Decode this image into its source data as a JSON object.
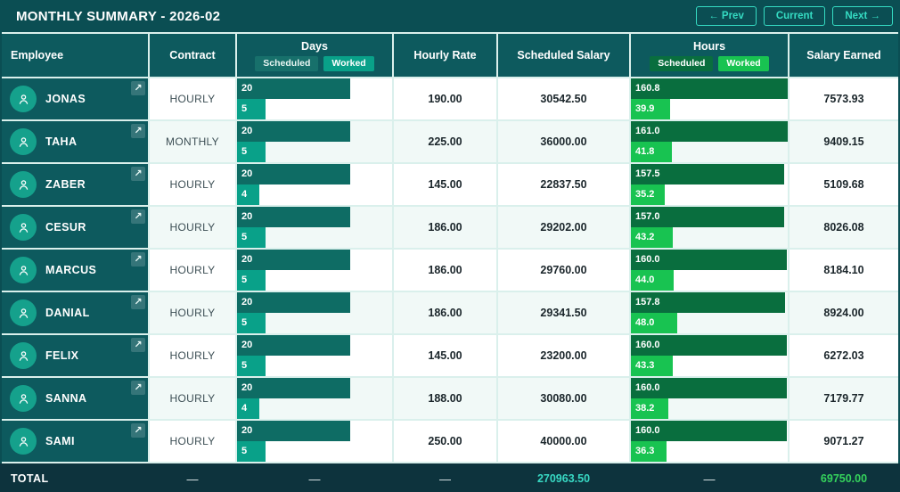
{
  "title": "MONTHLY SUMMARY - 2026-02",
  "nav": {
    "prev": "← Prev",
    "current": "Current",
    "next": "Next →"
  },
  "columns": {
    "employee": "Employee",
    "contract": "Contract",
    "days": "Days",
    "hourly_rate": "Hourly Rate",
    "scheduled_salary": "Scheduled Salary",
    "hours": "Hours",
    "salary_earned": "Salary Earned",
    "scheduled_badge": "Scheduled",
    "worked_badge": "Worked"
  },
  "bar_scales": {
    "days": 27.5,
    "hours": 161
  },
  "colors": {
    "page_bg": "#0b4e53",
    "header_cell_bg": "#0d5a5e",
    "accent": "#35dcc3",
    "grid_line": "#daf0ec",
    "row_alt_bg": "#f1f9f7",
    "badge_days_scheduled": "#17706b",
    "days_scheduled_bar": "#0e6c64",
    "days_worked_bar": "#09a189",
    "hours_scheduled_bar": "#096e3e",
    "hours_worked_bar": "#18c351",
    "avatar_bg": "#15a18c",
    "total_bg": "#0d333d",
    "total_scheduled_color": "#38d9c4",
    "total_earned_color": "#35d35c"
  },
  "open_icon": "↗",
  "employees": [
    {
      "name": "JONAS",
      "contract": "HOURLY",
      "days_scheduled": "20",
      "days_worked": "5",
      "hourly_rate": "190.00",
      "scheduled_salary": "30542.50",
      "hours_scheduled": "160.8",
      "hours_worked": "39.9",
      "salary_earned": "7573.93"
    },
    {
      "name": "TAHA",
      "contract": "MONTHLY",
      "days_scheduled": "20",
      "days_worked": "5",
      "hourly_rate": "225.00",
      "scheduled_salary": "36000.00",
      "hours_scheduled": "161.0",
      "hours_worked": "41.8",
      "salary_earned": "9409.15"
    },
    {
      "name": "ZABER",
      "contract": "HOURLY",
      "days_scheduled": "20",
      "days_worked": "4",
      "hourly_rate": "145.00",
      "scheduled_salary": "22837.50",
      "hours_scheduled": "157.5",
      "hours_worked": "35.2",
      "salary_earned": "5109.68"
    },
    {
      "name": "CESUR",
      "contract": "HOURLY",
      "days_scheduled": "20",
      "days_worked": "5",
      "hourly_rate": "186.00",
      "scheduled_salary": "29202.00",
      "hours_scheduled": "157.0",
      "hours_worked": "43.2",
      "salary_earned": "8026.08"
    },
    {
      "name": "MARCUS",
      "contract": "HOURLY",
      "days_scheduled": "20",
      "days_worked": "5",
      "hourly_rate": "186.00",
      "scheduled_salary": "29760.00",
      "hours_scheduled": "160.0",
      "hours_worked": "44.0",
      "salary_earned": "8184.10"
    },
    {
      "name": "DANIAL",
      "contract": "HOURLY",
      "days_scheduled": "20",
      "days_worked": "5",
      "hourly_rate": "186.00",
      "scheduled_salary": "29341.50",
      "hours_scheduled": "157.8",
      "hours_worked": "48.0",
      "salary_earned": "8924.00"
    },
    {
      "name": "FELIX",
      "contract": "HOURLY",
      "days_scheduled": "20",
      "days_worked": "5",
      "hourly_rate": "145.00",
      "scheduled_salary": "23200.00",
      "hours_scheduled": "160.0",
      "hours_worked": "43.3",
      "salary_earned": "6272.03"
    },
    {
      "name": "SANNA",
      "contract": "HOURLY",
      "days_scheduled": "20",
      "days_worked": "4",
      "hourly_rate": "188.00",
      "scheduled_salary": "30080.00",
      "hours_scheduled": "160.0",
      "hours_worked": "38.2",
      "salary_earned": "7179.77"
    },
    {
      "name": "SAMI",
      "contract": "HOURLY",
      "days_scheduled": "20",
      "days_worked": "5",
      "hourly_rate": "250.00",
      "scheduled_salary": "40000.00",
      "hours_scheduled": "160.0",
      "hours_worked": "36.3",
      "salary_earned": "9071.27"
    }
  ],
  "total": {
    "label": "TOTAL",
    "dash": "—",
    "scheduled_salary": "270963.50",
    "salary_earned": "69750.00"
  }
}
